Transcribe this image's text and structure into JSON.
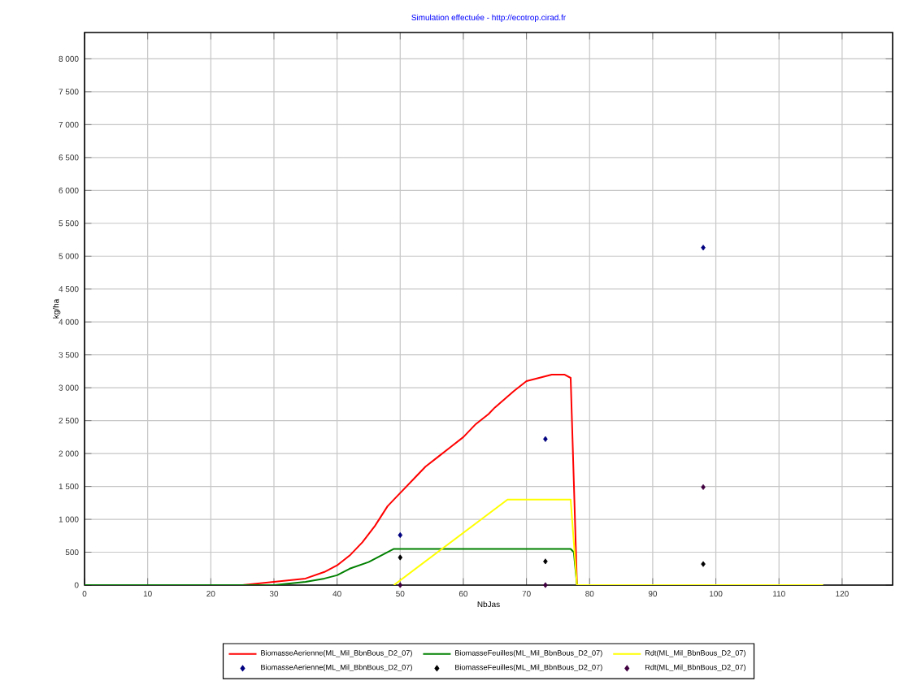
{
  "chart_data": {
    "type": "line",
    "title": "Simulation effectuée - http://ecotrop.cirad.fr",
    "xlabel": "NbJas",
    "ylabel": "kg/ha",
    "xlim": [
      0,
      128
    ],
    "ylim": [
      0,
      8400
    ],
    "xticks": [
      0,
      10,
      20,
      30,
      40,
      50,
      60,
      70,
      80,
      90,
      100,
      110,
      120
    ],
    "yticks": [
      0,
      500,
      {
        "value": 1000,
        "label": "1 000"
      },
      {
        "value": 1500,
        "label": "1 500"
      },
      {
        "value": 2000,
        "label": "2 000"
      },
      {
        "value": 2500,
        "label": "2 500"
      },
      {
        "value": 3000,
        "label": "3 000"
      },
      {
        "value": 3500,
        "label": "3 500"
      },
      {
        "value": 4000,
        "label": "4 000"
      },
      {
        "value": 4500,
        "label": "4 500"
      },
      {
        "value": 5000,
        "label": "5 000"
      },
      {
        "value": 5500,
        "label": "5 500"
      },
      {
        "value": 6000,
        "label": "6 000"
      },
      {
        "value": 6500,
        "label": "6 500"
      },
      {
        "value": 7000,
        "label": "7 000"
      },
      {
        "value": 7500,
        "label": "7 500"
      },
      {
        "value": 8000,
        "label": "8 000"
      }
    ],
    "grid": true,
    "legend": "bottom",
    "series": [
      {
        "name": "BiomasseAerienne(ML_Mil_BbnBous_D2_07)",
        "marker": "none",
        "color": "#ff0000",
        "x": [
          18,
          25,
          30,
          35,
          38,
          40,
          42,
          44,
          46,
          48,
          50,
          52,
          54,
          56,
          58,
          60,
          62,
          64,
          65,
          68,
          70,
          72,
          74,
          76,
          77,
          78
        ],
        "values": [
          0,
          0,
          50,
          100,
          200,
          300,
          450,
          650,
          900,
          1200,
          1400,
          1600,
          1800,
          1950,
          2100,
          2250,
          2450,
          2600,
          2700,
          2950,
          3100,
          3150,
          3200,
          3200,
          3150,
          0
        ]
      },
      {
        "name": "BiomasseFeuilles(ML_Mil_BbnBous_D2_07)",
        "marker": "none",
        "color": "#008000",
        "x": [
          0,
          27,
          30,
          35,
          38,
          40,
          42,
          45,
          47,
          49,
          65,
          76,
          77,
          77.5,
          78
        ],
        "values": [
          0,
          0,
          0,
          50,
          100,
          150,
          250,
          350,
          450,
          550,
          550,
          550,
          550,
          500,
          0
        ]
      },
      {
        "name": "Rdt(ML_Mil_BbnBous_D2_07)",
        "marker": "none",
        "color": "#ffff00",
        "x": [
          49,
          67,
          77,
          78,
          117
        ],
        "values": [
          0,
          1300,
          1300,
          0,
          0
        ]
      },
      {
        "name": "BiomasseAerienne(ML_Mil_BbnBous_D2_07)",
        "type": "scatter",
        "marker": "diamond",
        "color": "#000080",
        "x": [
          50,
          73,
          98
        ],
        "values": [
          760,
          2220,
          5130
        ]
      },
      {
        "name": "BiomasseFeuilles(ML_Mil_BbnBous_D2_07)",
        "type": "scatter",
        "marker": "diamond",
        "color": "#000000",
        "x": [
          50,
          73,
          98
        ],
        "values": [
          420,
          360,
          320
        ]
      },
      {
        "name": "Rdt(ML_Mil_BbnBous_D2_07)",
        "type": "scatter",
        "marker": "diamond",
        "color": "#400040",
        "x": [
          50,
          73,
          98
        ],
        "values": [
          0,
          0,
          1490
        ]
      }
    ]
  }
}
